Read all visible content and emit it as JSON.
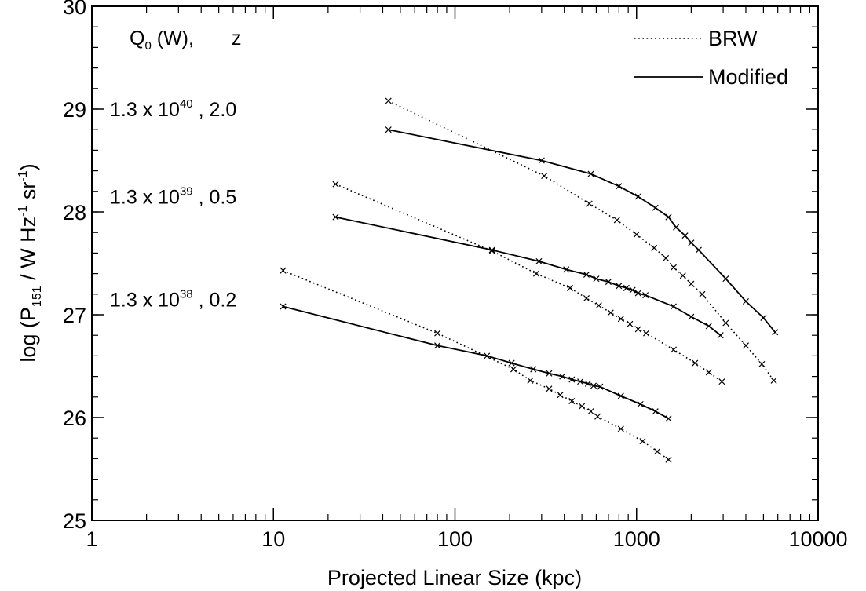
{
  "chart_data": {
    "type": "line",
    "xscale": "log",
    "xlim": [
      1,
      10000
    ],
    "ylim": [
      25,
      30
    ],
    "xlabel": "Projected Linear Size (kpc)",
    "ylabel_parts": {
      "pre": "log (P",
      "sub": "151",
      "mid": " / W Hz",
      "sup1": "-1",
      "mid2": " sr",
      "sup2": "-1",
      "post": ")"
    },
    "x_ticks": [
      {
        "value": 1,
        "label": "1"
      },
      {
        "value": 10,
        "label": "10"
      },
      {
        "value": 100,
        "label": "100"
      },
      {
        "value": 1000,
        "label": "1000"
      },
      {
        "value": 10000,
        "label": "10000"
      }
    ],
    "y_ticks": [
      {
        "value": 25,
        "label": "25"
      },
      {
        "value": 26,
        "label": "26"
      },
      {
        "value": 27,
        "label": "27"
      },
      {
        "value": 28,
        "label": "28"
      },
      {
        "value": 29,
        "label": "29"
      },
      {
        "value": 30,
        "label": "30"
      }
    ],
    "grid": false,
    "legend_position": "top-right",
    "legend": [
      {
        "label": "BRW",
        "style": "dotted"
      },
      {
        "label": "Modified",
        "style": "solid"
      }
    ],
    "header_annotation": {
      "q": "Q",
      "q_sub": "0",
      "rest": " (W),",
      "z": "z"
    },
    "group_annotations": [
      {
        "prefix": "1.3 x 10",
        "exp": "40",
        "suffix": " , 2.0",
        "y": 29.0
      },
      {
        "prefix": "1.3 x 10",
        "exp": "39",
        "suffix": " , 0.5",
        "y": 28.15
      },
      {
        "prefix": "1.3 x 10",
        "exp": "38",
        "suffix": " , 0.2",
        "y": 27.15
      }
    ],
    "series": [
      {
        "style": "dotted",
        "x": [
          43,
          310,
          550,
          780,
          1000,
          1250,
          1450,
          1600,
          1800,
          2000,
          2300,
          3100,
          4000,
          4900,
          5700
        ],
        "y": [
          29.08,
          28.35,
          28.08,
          27.92,
          27.78,
          27.65,
          27.55,
          27.46,
          27.38,
          27.3,
          27.2,
          26.92,
          26.7,
          26.52,
          26.36
        ]
      },
      {
        "style": "solid",
        "x": [
          43,
          300,
          560,
          800,
          1020,
          1270,
          1500,
          1650,
          1850,
          2000,
          2200,
          3100,
          4000,
          5000,
          5800
        ],
        "y": [
          28.8,
          28.5,
          28.37,
          28.25,
          28.15,
          28.04,
          27.95,
          27.85,
          27.77,
          27.7,
          27.63,
          27.35,
          27.13,
          26.97,
          26.83
        ]
      },
      {
        "style": "dotted",
        "x": [
          22,
          160,
          280,
          430,
          530,
          620,
          720,
          820,
          920,
          1020,
          1130,
          1600,
          2100,
          2500,
          2950
        ],
        "y": [
          28.27,
          27.62,
          27.4,
          27.26,
          27.16,
          27.09,
          27.02,
          26.96,
          26.91,
          26.86,
          26.82,
          26.66,
          26.53,
          26.44,
          26.35
        ]
      },
      {
        "style": "solid",
        "x": [
          22,
          160,
          290,
          410,
          530,
          600,
          700,
          800,
          880,
          950,
          1020,
          1120,
          1600,
          2000,
          2500,
          2900
        ],
        "y": [
          27.95,
          27.63,
          27.52,
          27.44,
          27.39,
          27.35,
          27.32,
          27.28,
          27.26,
          27.24,
          27.21,
          27.19,
          27.08,
          26.98,
          26.89,
          26.8
        ]
      },
      {
        "style": "dotted",
        "x": [
          11.3,
          80,
          210,
          260,
          330,
          380,
          440,
          500,
          560,
          610,
          820,
          1080,
          1300,
          1500
        ],
        "y": [
          27.43,
          26.82,
          26.47,
          26.36,
          26.28,
          26.22,
          26.16,
          26.11,
          26.06,
          26.01,
          25.89,
          25.77,
          25.67,
          25.59
        ]
      },
      {
        "style": "solid",
        "x": [
          11.3,
          80,
          150,
          205,
          270,
          330,
          390,
          440,
          490,
          540,
          580,
          630,
          820,
          1050,
          1270,
          1500
        ],
        "y": [
          27.08,
          26.7,
          26.6,
          26.53,
          26.47,
          26.43,
          26.4,
          26.37,
          26.35,
          26.33,
          26.31,
          26.3,
          26.21,
          26.13,
          26.06,
          25.99
        ]
      }
    ]
  }
}
